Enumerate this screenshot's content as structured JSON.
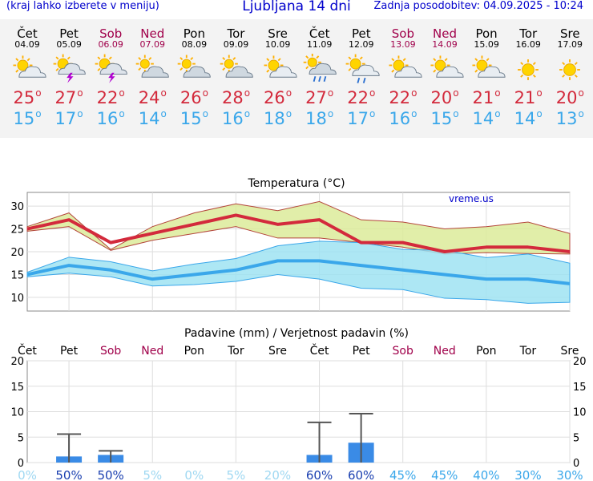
{
  "header": {
    "hint": "(kraj lahko izberete v meniju)",
    "title": "Ljubljana 14 dni",
    "updated": "Zadnja posodobitev: 04.09.2025 - 10:24"
  },
  "days": [
    {
      "name": "Čet",
      "date": "04.09",
      "weekend": false,
      "icon": "sun-cloud-icon",
      "hi": "25",
      "lo": "15"
    },
    {
      "name": "Pet",
      "date": "05.09",
      "weekend": false,
      "icon": "thunderstorm-icon",
      "hi": "27",
      "lo": "17"
    },
    {
      "name": "Sob",
      "date": "06.09",
      "weekend": true,
      "icon": "thunderstorm-icon",
      "hi": "22",
      "lo": "16"
    },
    {
      "name": "Ned",
      "date": "07.09",
      "weekend": true,
      "icon": "cloudy-icon",
      "hi": "24",
      "lo": "14"
    },
    {
      "name": "Pon",
      "date": "08.09",
      "weekend": false,
      "icon": "cloudy-icon",
      "hi": "26",
      "lo": "15"
    },
    {
      "name": "Tor",
      "date": "09.09",
      "weekend": false,
      "icon": "cloudy-icon",
      "hi": "28",
      "lo": "16"
    },
    {
      "name": "Sre",
      "date": "10.09",
      "weekend": false,
      "icon": "sun-cloud-icon",
      "hi": "26",
      "lo": "18"
    },
    {
      "name": "Čet",
      "date": "11.09",
      "weekend": false,
      "icon": "rain-cloud-icon",
      "hi": "27",
      "lo": "18"
    },
    {
      "name": "Pet",
      "date": "12.09",
      "weekend": false,
      "icon": "sun-rain-icon",
      "hi": "22",
      "lo": "17"
    },
    {
      "name": "Sob",
      "date": "13.09",
      "weekend": true,
      "icon": "sun-cloud-icon",
      "hi": "22",
      "lo": "16"
    },
    {
      "name": "Ned",
      "date": "14.09",
      "weekend": true,
      "icon": "sun-cloud-icon",
      "hi": "20",
      "lo": "15"
    },
    {
      "name": "Pon",
      "date": "15.09",
      "weekend": false,
      "icon": "sun-cloud-icon",
      "hi": "21",
      "lo": "14"
    },
    {
      "name": "Tor",
      "date": "16.09",
      "weekend": false,
      "icon": "sun-icon",
      "hi": "21",
      "lo": "14"
    },
    {
      "name": "Sre",
      "date": "17.09",
      "weekend": false,
      "icon": "sun-icon",
      "hi": "20",
      "lo": "13"
    }
  ],
  "degree_symbol": "o",
  "colors": {
    "hi": "#d32a3c",
    "lo": "#3aa7ea",
    "weekend": "#a0004a",
    "band_hi": "#dceb9a",
    "band_lo": "#9fe3f2",
    "overlap": "#8ed88e",
    "precip_bar": "#3a8be6"
  },
  "chart_data": [
    {
      "type": "line",
      "title": "Temperatura (°C)",
      "watermark": "vreme.us",
      "ylim": [
        7,
        33
      ],
      "yticks": [
        10,
        15,
        20,
        25,
        30
      ],
      "grid": true,
      "x": [
        0,
        1,
        2,
        3,
        4,
        5,
        6,
        7,
        8,
        9,
        10,
        11,
        12,
        13
      ],
      "series": [
        {
          "values": [
            25,
            27,
            22,
            24,
            26,
            28,
            26,
            27,
            22,
            22,
            20,
            21,
            21,
            20
          ]
        },
        {
          "values": [
            15,
            17,
            16,
            14,
            15,
            16,
            18,
            18,
            17,
            16,
            15,
            14,
            14,
            13
          ]
        }
      ],
      "hi_band": {
        "upper": [
          25.5,
          28.5,
          20.5,
          25.5,
          28.5,
          30.5,
          29,
          31,
          27,
          26.5,
          25,
          25.5,
          26.5,
          24
        ],
        "lower": [
          24.5,
          25.5,
          20.3,
          22.5,
          24,
          25.5,
          23,
          23,
          22,
          21,
          19.5,
          19.8,
          19.6,
          19.5
        ]
      },
      "lo_band": {
        "upper": [
          15.5,
          18.8,
          17.8,
          15.8,
          17.3,
          18.5,
          21.3,
          22.3,
          22,
          20.5,
          20.3,
          18.7,
          19.5,
          17.5
        ],
        "lower": [
          14.5,
          15.3,
          14.5,
          12.5,
          12.8,
          13.5,
          15,
          14,
          12,
          11.7,
          9.8,
          9.5,
          8.7,
          8.9
        ]
      }
    },
    {
      "type": "bar",
      "title": "Padavine (mm) / Verjetnost padavin (%)",
      "categories": [
        "Čet",
        "Pet",
        "Sob",
        "Ned",
        "Pon",
        "Tor",
        "Sre",
        "Čet",
        "Pet",
        "Sob",
        "Ned",
        "Pon",
        "Tor",
        "Sre"
      ],
      "ylim": [
        0,
        20
      ],
      "yticks": [
        0,
        5,
        10,
        15,
        20
      ],
      "grid": true,
      "values": [
        0,
        1.2,
        1.5,
        0,
        0,
        0,
        0,
        1.5,
        3.9,
        0,
        0,
        0,
        0,
        0
      ],
      "range_max": [
        0,
        5.6,
        2.3,
        0,
        0,
        0,
        0,
        7.9,
        9.6,
        0,
        0,
        0,
        0,
        0
      ],
      "probability": [
        "0%",
        "50%",
        "50%",
        "5%",
        "0%",
        "5%",
        "20%",
        "60%",
        "60%",
        "45%",
        "45%",
        "40%",
        "30%",
        "30%"
      ]
    }
  ]
}
